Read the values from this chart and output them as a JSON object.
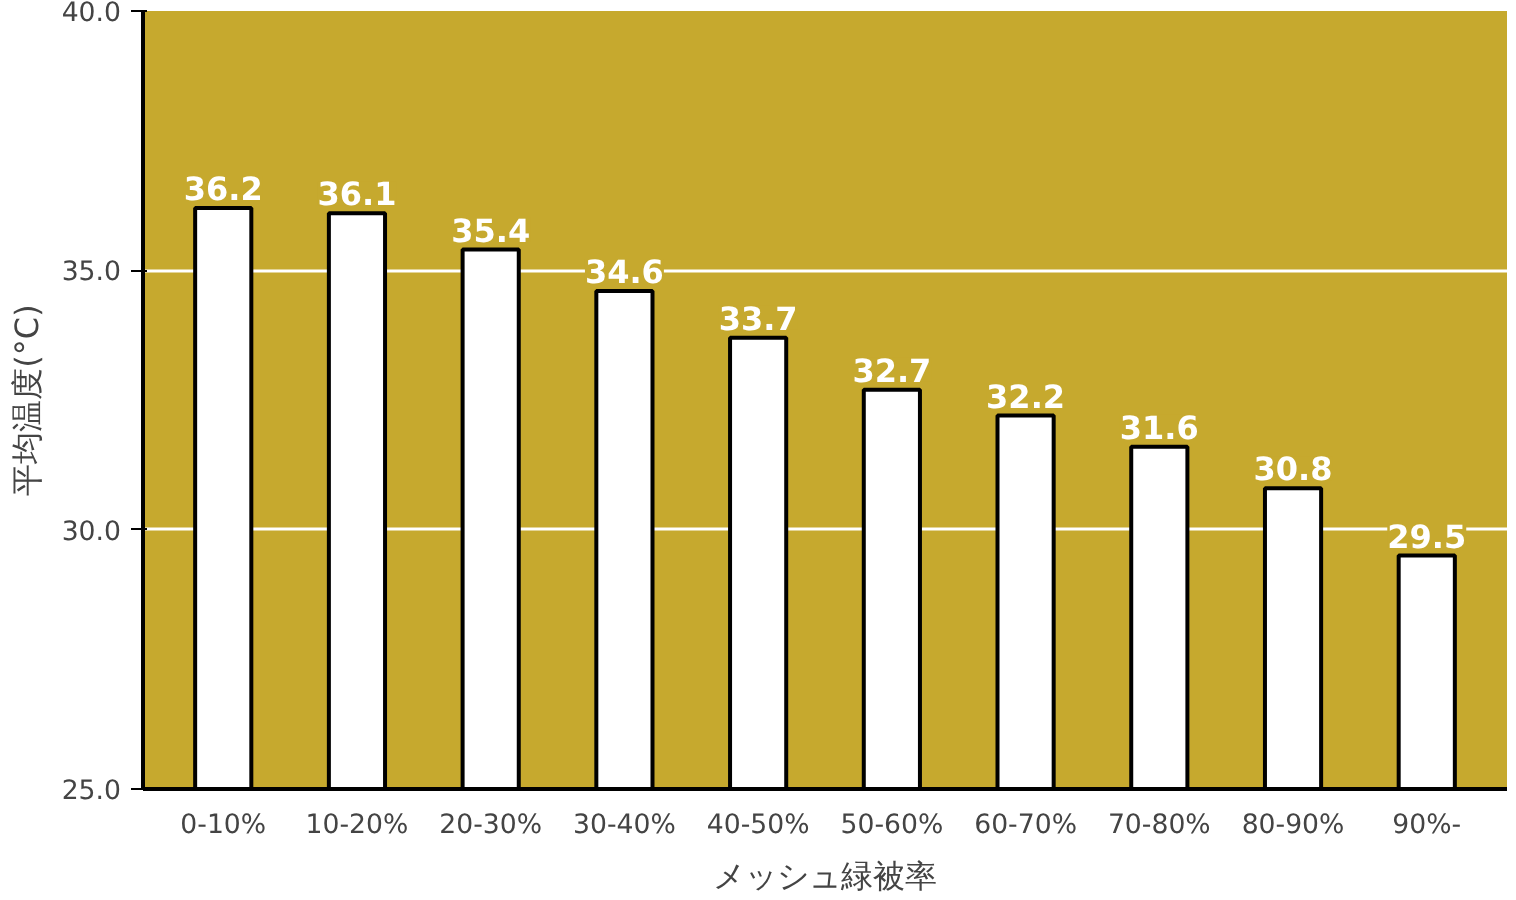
{
  "chart_data": {
    "type": "bar",
    "xlabel": "メッシュ緑被率",
    "ylabel": "平均温度(°C)",
    "categories": [
      "0-10%",
      "10-20%",
      "20-30%",
      "30-40%",
      "40-50%",
      "50-60%",
      "60-70%",
      "70-80%",
      "80-90%",
      "90%-"
    ],
    "values": [
      36.2,
      36.1,
      35.4,
      34.6,
      33.7,
      32.7,
      32.2,
      31.6,
      30.8,
      29.5
    ],
    "color": "#ffffff",
    "ylim": [
      25,
      40
    ],
    "yticks": [
      {
        "value": 25,
        "label": "25.0"
      },
      {
        "value": 30,
        "label": "30.0"
      },
      {
        "value": 35,
        "label": "35.0"
      },
      {
        "value": 40,
        "label": "40.0"
      }
    ],
    "grid": "y",
    "data_labels": true
  }
}
